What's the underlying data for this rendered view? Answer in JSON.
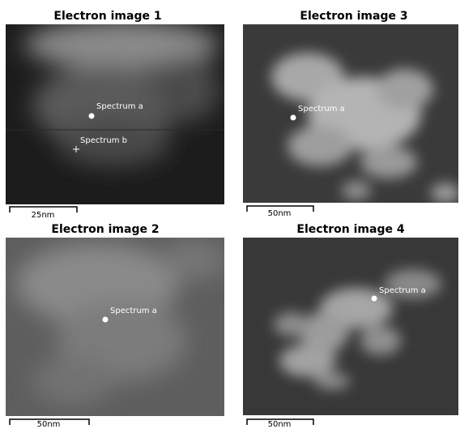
{
  "panels": [
    {
      "title": "Electron image 1",
      "scale_label": "25nm",
      "markers": [
        {
          "label": "Spectrum a"
        },
        {
          "label": "Spectrum b"
        }
      ]
    },
    {
      "title": "Electron image 3",
      "scale_label": "50nm",
      "markers": [
        {
          "label": "Spectrum a"
        }
      ]
    },
    {
      "title": "Electron image 2",
      "scale_label": "50nm",
      "markers": [
        {
          "label": "Spectrum a"
        }
      ]
    },
    {
      "title": "Electron image 4",
      "scale_label": "50nm",
      "markers": [
        {
          "label": "Spectrum a"
        }
      ]
    }
  ]
}
